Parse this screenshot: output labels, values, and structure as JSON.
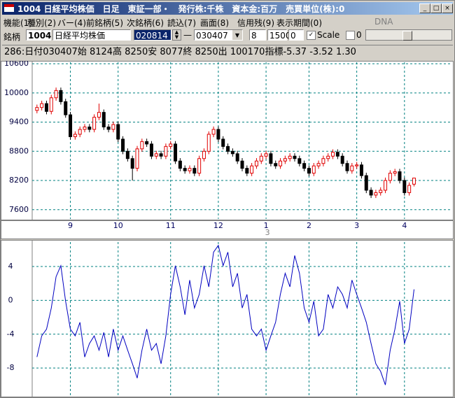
{
  "window": {
    "title": "1004 日経平均株価　日足　東証一部・　発行株:千株　資本金:百万　売買単位(株):0"
  },
  "menu": [
    "機能(1)",
    "種別(2)",
    "バー(4)",
    "前銘柄(5)",
    "次銘柄(6)",
    "読込(7)",
    "画面(8)",
    "信用残(9)",
    "表示期間(0)",
    "DNA"
  ],
  "toolbar": {
    "label": "銘柄",
    "code": "1004",
    "name": "日経平均株価",
    "from": "020814",
    "dash": "—",
    "to": "030407",
    "field1": "8",
    "field2": "1500",
    "field3": "0",
    "scale": "Scale",
    "field4": "0"
  },
  "info": "286:日付030407始 8124高 8250安 8077終 8250出 100170指標-5.37 -3.52 1.30",
  "chart_data": [
    {
      "type": "candlestick",
      "x": [
        0,
        1,
        2,
        3,
        4,
        5,
        6,
        7,
        8,
        9,
        10,
        11,
        12,
        13,
        14,
        15,
        16,
        17,
        18,
        19,
        20,
        21,
        22,
        23,
        24,
        25,
        26,
        27,
        28,
        29,
        30,
        31,
        32,
        33,
        34,
        35,
        36,
        37,
        38,
        39,
        40,
        41,
        42,
        43,
        44,
        45,
        46,
        47,
        48,
        49,
        50,
        51,
        52,
        53,
        54,
        55,
        56,
        57,
        58,
        59,
        60,
        61,
        62,
        63,
        64,
        65,
        66,
        67,
        68,
        69,
        70,
        71,
        72,
        73,
        74,
        75,
        76,
        77,
        78,
        79
      ],
      "open": [
        9640,
        9700,
        9780,
        9620,
        9900,
        10050,
        9820,
        9550,
        9100,
        9150,
        9250,
        9300,
        9250,
        9500,
        9600,
        9300,
        9250,
        9350,
        9050,
        8800,
        8650,
        8450,
        8850,
        9000,
        8950,
        8700,
        8750,
        8700,
        8900,
        8950,
        8600,
        8450,
        8400,
        8450,
        8350,
        8650,
        8800,
        9150,
        9250,
        9050,
        8900,
        8800,
        8750,
        8600,
        8450,
        8350,
        8500,
        8600,
        8700,
        8750,
        8550,
        8500,
        8600,
        8650,
        8700,
        8650,
        8550,
        8450,
        8350,
        8500,
        8550,
        8650,
        8700,
        8780,
        8700,
        8550,
        8400,
        8500,
        8520,
        8300,
        8000,
        7900,
        7950,
        8000,
        8200,
        8350,
        8380,
        8200,
        7950,
        8124
      ],
      "high": [
        9760,
        9840,
        9840,
        9960,
        10110,
        10110,
        9880,
        9610,
        9210,
        9310,
        9360,
        9360,
        9560,
        9780,
        9660,
        9360,
        9410,
        9410,
        9110,
        8860,
        8710,
        8910,
        9060,
        9060,
        9010,
        8810,
        8810,
        8960,
        9010,
        9010,
        8660,
        8510,
        8510,
        8510,
        8710,
        8860,
        9210,
        9310,
        9310,
        9110,
        8960,
        8860,
        8810,
        8660,
        8510,
        8560,
        8660,
        8760,
        8810,
        8810,
        8610,
        8660,
        8710,
        8760,
        8760,
        8710,
        8610,
        8510,
        8560,
        8610,
        8710,
        8760,
        8840,
        8840,
        8760,
        8610,
        8560,
        8580,
        8580,
        8360,
        8060,
        8010,
        8060,
        8260,
        8410,
        8440,
        8440,
        8260,
        8160,
        8250
      ],
      "low": [
        9580,
        9640,
        9560,
        9560,
        9840,
        9760,
        9490,
        9040,
        9040,
        9090,
        9190,
        9190,
        9190,
        9440,
        9240,
        9190,
        9190,
        8990,
        8740,
        8590,
        8200,
        8390,
        8790,
        8890,
        8640,
        8640,
        8640,
        8640,
        8840,
        8540,
        8390,
        8340,
        8340,
        8290,
        8290,
        8590,
        8740,
        9090,
        8990,
        8840,
        8740,
        8690,
        8540,
        8390,
        8290,
        8290,
        8440,
        8540,
        8640,
        8490,
        8440,
        8440,
        8540,
        8590,
        8590,
        8490,
        8390,
        8290,
        8290,
        8440,
        8490,
        8590,
        8640,
        8640,
        8490,
        8340,
        8340,
        8440,
        8240,
        7940,
        7840,
        7840,
        7890,
        7940,
        8140,
        8290,
        8140,
        7890,
        7890,
        8077
      ],
      "close": [
        9700,
        9780,
        9620,
        9900,
        10050,
        9820,
        9550,
        9100,
        9150,
        9250,
        9300,
        9250,
        9500,
        9600,
        9300,
        9250,
        9350,
        9050,
        8800,
        8650,
        8450,
        8850,
        9000,
        8950,
        8700,
        8750,
        8700,
        8900,
        8950,
        8600,
        8450,
        8400,
        8450,
        8350,
        8650,
        8800,
        9150,
        9250,
        9050,
        8900,
        8800,
        8750,
        8600,
        8450,
        8350,
        8500,
        8600,
        8700,
        8750,
        8550,
        8500,
        8600,
        8650,
        8700,
        8650,
        8550,
        8450,
        8350,
        8500,
        8550,
        8650,
        8700,
        8780,
        8700,
        8550,
        8400,
        8500,
        8520,
        8300,
        8000,
        7900,
        7950,
        8000,
        8200,
        8350,
        8380,
        8200,
        7950,
        8100,
        8250
      ],
      "up_color": "#e00000",
      "down_color": "#000000",
      "xlim": [
        -1,
        87
      ],
      "xticks": [
        {
          "value": 7,
          "label": "9"
        },
        {
          "value": 17,
          "label": "10"
        },
        {
          "value": 28,
          "label": "11"
        },
        {
          "value": 38,
          "label": "12"
        },
        {
          "value": 48,
          "label": "1"
        },
        {
          "value": 57,
          "label": "2"
        },
        {
          "value": 67,
          "label": "3"
        },
        {
          "value": 77,
          "label": "4"
        }
      ],
      "year_label": "3",
      "ylim": [
        7410,
        10630
      ],
      "yticks": [
        7600,
        8200,
        8800,
        9400,
        10000,
        10600
      ],
      "grid": true
    },
    {
      "type": "line",
      "x": [
        0,
        1,
        2,
        3,
        4,
        5,
        6,
        7,
        8,
        9,
        10,
        11,
        12,
        13,
        14,
        15,
        16,
        17,
        18,
        19,
        20,
        21,
        22,
        23,
        24,
        25,
        26,
        27,
        28,
        29,
        30,
        31,
        32,
        33,
        34,
        35,
        36,
        37,
        38,
        39,
        40,
        41,
        42,
        43,
        44,
        45,
        46,
        47,
        48,
        49,
        50,
        51,
        52,
        53,
        54,
        55,
        56,
        57,
        58,
        59,
        60,
        61,
        62,
        63,
        64,
        65,
        66,
        67,
        68,
        69,
        70,
        71,
        72,
        73,
        74,
        75,
        76,
        77,
        78,
        79
      ],
      "values": [
        -6.7,
        -4.2,
        -3.4,
        -0.9,
        2.8,
        4.1,
        -0.1,
        -3.4,
        -4.2,
        -2.6,
        -6.7,
        -5.1,
        -4.2,
        -5.9,
        -3.8,
        -6.7,
        -3.4,
        -5.9,
        -4.2,
        -5.9,
        -7.5,
        -9.2,
        -5.9,
        -3.4,
        -5.9,
        -5.1,
        -7.5,
        -4.2,
        0.7,
        4.1,
        1.6,
        -1.7,
        2.4,
        -0.9,
        0.7,
        4.1,
        1.6,
        5.7,
        6.5,
        4.1,
        5.7,
        1.6,
        3.2,
        -0.9,
        0.7,
        -3.4,
        -4.2,
        -3.4,
        -5.9,
        -4.2,
        -2.6,
        0.7,
        3.2,
        1.6,
        5.3,
        3.2,
        -0.9,
        -2.6,
        -0.1,
        -4.2,
        -3.4,
        0.7,
        -0.9,
        1.6,
        0.7,
        -0.9,
        2.4,
        0.7,
        -0.9,
        -2.6,
        -5.1,
        -7.5,
        -8.4,
        -10.0,
        -5.9,
        -3.4,
        -0.1,
        -5.1,
        -3.4,
        1.3
      ],
      "color": "#0000c0",
      "xlim": [
        -1,
        87
      ],
      "ylim": [
        -11.3,
        6.9
      ],
      "yticks": [
        -8,
        -4,
        0,
        4
      ],
      "grid": true
    }
  ]
}
